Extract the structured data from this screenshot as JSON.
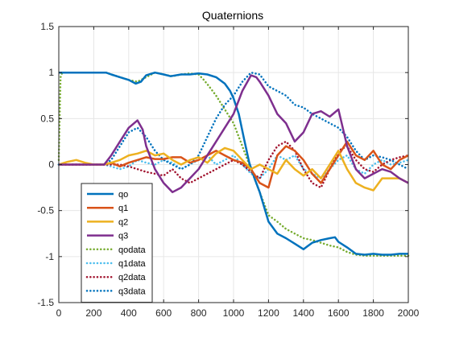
{
  "chart_data": {
    "type": "line",
    "title": "Quaternions",
    "xlabel": "",
    "ylabel": "",
    "xlim": [
      0,
      2000
    ],
    "ylim": [
      -1.5,
      1.5
    ],
    "xticks": [
      0,
      200,
      400,
      600,
      800,
      1000,
      1200,
      1400,
      1600,
      1800,
      2000
    ],
    "yticks": [
      -1.5,
      -1,
      -0.5,
      0,
      0.5,
      1,
      1.5
    ],
    "xtick_labels": [
      "0",
      "200",
      "400",
      "600",
      "800",
      "1000",
      "1200",
      "1400",
      "1600",
      "1800",
      "2000"
    ],
    "ytick_labels": [
      "-1.5",
      "-1",
      "-0.5",
      "0",
      "0.5",
      "1",
      "1.5"
    ],
    "grid": true,
    "legend_position": "bottom-left",
    "series": [
      {
        "name": "qo",
        "color": "#0072BD",
        "style": "solid",
        "x": [
          0,
          20,
          100,
          200,
          270,
          300,
          350,
          400,
          440,
          470,
          500,
          550,
          600,
          640,
          700,
          750,
          800,
          850,
          900,
          950,
          980,
          1000,
          1030,
          1060,
          1090,
          1120,
          1150,
          1200,
          1250,
          1300,
          1350,
          1400,
          1450,
          1500,
          1550,
          1580,
          1600,
          1650,
          1700,
          1750,
          1800,
          1850,
          1900,
          1950,
          2000
        ],
        "y": [
          1.0,
          1.0,
          1.0,
          1.0,
          1.0,
          0.98,
          0.95,
          0.92,
          0.88,
          0.9,
          0.97,
          1.0,
          0.98,
          0.96,
          0.98,
          0.98,
          0.99,
          0.98,
          0.95,
          0.88,
          0.8,
          0.72,
          0.55,
          0.28,
          0.02,
          -0.15,
          -0.3,
          -0.62,
          -0.75,
          -0.8,
          -0.86,
          -0.92,
          -0.85,
          -0.82,
          -0.8,
          -0.79,
          -0.84,
          -0.9,
          -0.97,
          -0.98,
          -0.97,
          -0.98,
          -0.98,
          -0.97,
          -0.97
        ]
      },
      {
        "name": "q1",
        "color": "#D95319",
        "style": "solid",
        "x": [
          0,
          100,
          200,
          260,
          300,
          350,
          400,
          450,
          500,
          550,
          600,
          650,
          700,
          750,
          800,
          850,
          900,
          950,
          1000,
          1050,
          1100,
          1150,
          1200,
          1250,
          1300,
          1350,
          1400,
          1450,
          1500,
          1550,
          1600,
          1650,
          1700,
          1750,
          1800,
          1850,
          1900,
          1950,
          2000
        ],
        "y": [
          0.0,
          0.0,
          0.0,
          0.0,
          0.02,
          -0.02,
          0.02,
          0.05,
          0.08,
          0.06,
          0.06,
          0.08,
          0.08,
          0.02,
          0.05,
          0.1,
          0.15,
          0.1,
          0.05,
          0.02,
          -0.05,
          -0.2,
          -0.25,
          0.1,
          0.2,
          0.15,
          0.05,
          -0.1,
          -0.2,
          -0.05,
          0.1,
          0.25,
          0.1,
          0.05,
          0.15,
          0.0,
          -0.05,
          0.05,
          0.1
        ]
      },
      {
        "name": "q2",
        "color": "#EDB120",
        "style": "solid",
        "x": [
          0,
          50,
          100,
          150,
          200,
          250,
          300,
          350,
          400,
          450,
          500,
          550,
          600,
          650,
          700,
          750,
          800,
          850,
          900,
          950,
          1000,
          1050,
          1100,
          1150,
          1200,
          1250,
          1300,
          1350,
          1400,
          1450,
          1500,
          1550,
          1600,
          1650,
          1700,
          1750,
          1800,
          1850,
          1900,
          1950,
          2000
        ],
        "y": [
          0.0,
          0.03,
          0.05,
          0.02,
          0.0,
          0.0,
          0.02,
          0.05,
          0.1,
          0.12,
          0.15,
          0.1,
          0.12,
          0.05,
          0.0,
          0.05,
          0.08,
          0.02,
          0.12,
          0.18,
          0.15,
          0.05,
          -0.05,
          0.0,
          -0.05,
          -0.1,
          0.05,
          -0.05,
          -0.12,
          -0.05,
          -0.15,
          0.0,
          0.15,
          -0.05,
          -0.2,
          -0.25,
          -0.28,
          -0.15,
          -0.15,
          -0.15,
          -0.2
        ]
      },
      {
        "name": "q3",
        "color": "#7E2F8E",
        "style": "solid",
        "x": [
          0,
          100,
          200,
          260,
          300,
          350,
          400,
          450,
          480,
          500,
          550,
          600,
          650,
          700,
          750,
          800,
          850,
          900,
          950,
          1000,
          1050,
          1100,
          1130,
          1150,
          1200,
          1250,
          1300,
          1350,
          1400,
          1450,
          1500,
          1550,
          1600,
          1650,
          1700,
          1750,
          1800,
          1850,
          1900,
          1950,
          2000
        ],
        "y": [
          0.0,
          0.0,
          0.0,
          0.0,
          0.1,
          0.25,
          0.4,
          0.48,
          0.38,
          0.2,
          -0.05,
          -0.2,
          -0.3,
          -0.25,
          -0.15,
          -0.05,
          0.1,
          0.25,
          0.4,
          0.55,
          0.8,
          0.97,
          0.95,
          0.9,
          0.75,
          0.55,
          0.45,
          0.25,
          0.35,
          0.55,
          0.58,
          0.52,
          0.6,
          0.2,
          -0.05,
          -0.15,
          -0.1,
          -0.05,
          -0.08,
          -0.15,
          -0.2
        ]
      },
      {
        "name": "qodata",
        "color": "#77AC30",
        "style": "dotted",
        "x": [
          0,
          10,
          20,
          100,
          200,
          270,
          300,
          350,
          400,
          450,
          500,
          550,
          600,
          650,
          700,
          750,
          800,
          830,
          860,
          900,
          950,
          1000,
          1050,
          1100,
          1150,
          1200,
          1250,
          1300,
          1350,
          1400,
          1450,
          1500,
          1550,
          1600,
          1650,
          1700,
          1750,
          1800,
          1850,
          1900,
          1950,
          2000
        ],
        "y": [
          0.05,
          0.95,
          1.0,
          1.0,
          1.0,
          1.0,
          0.98,
          0.95,
          0.92,
          0.9,
          0.95,
          1.0,
          0.98,
          0.96,
          0.98,
          0.99,
          0.98,
          0.92,
          0.85,
          0.75,
          0.6,
          0.45,
          0.2,
          -0.05,
          -0.3,
          -0.55,
          -0.62,
          -0.7,
          -0.75,
          -0.8,
          -0.82,
          -0.85,
          -0.88,
          -0.9,
          -0.95,
          -0.98,
          -0.99,
          -0.99,
          -0.99,
          -0.99,
          -0.99,
          -0.99
        ]
      },
      {
        "name": "q1data",
        "color": "#4DBEEE",
        "style": "dotted",
        "x": [
          0,
          100,
          200,
          260,
          300,
          350,
          400,
          450,
          500,
          550,
          600,
          650,
          700,
          750,
          800,
          850,
          900,
          950,
          1000,
          1050,
          1100,
          1150,
          1200,
          1250,
          1300,
          1350,
          1400,
          1450,
          1500,
          1550,
          1600,
          1650,
          1700,
          1750,
          1800,
          1850,
          1900,
          1950,
          2000
        ],
        "y": [
          0.0,
          0.0,
          0.0,
          0.0,
          -0.02,
          -0.05,
          -0.02,
          0.05,
          0.02,
          0.0,
          0.05,
          0.02,
          -0.05,
          0.0,
          0.05,
          0.1,
          0.0,
          0.05,
          0.1,
          0.0,
          -0.1,
          -0.15,
          -0.05,
          0.1,
          0.05,
          0.1,
          -0.05,
          -0.1,
          -0.15,
          -0.05,
          0.05,
          0.1,
          -0.05,
          -0.1,
          0.0,
          0.05,
          0.0,
          0.02,
          0.05
        ]
      },
      {
        "name": "q2data",
        "color": "#A2142F",
        "style": "dotted",
        "x": [
          0,
          100,
          200,
          260,
          300,
          350,
          400,
          450,
          500,
          550,
          600,
          650,
          700,
          750,
          800,
          850,
          900,
          950,
          1000,
          1050,
          1100,
          1150,
          1200,
          1250,
          1300,
          1350,
          1400,
          1450,
          1500,
          1550,
          1600,
          1650,
          1700,
          1750,
          1800,
          1850,
          1900,
          1950,
          2000
        ],
        "y": [
          0.0,
          0.0,
          0.0,
          0.0,
          0.0,
          0.0,
          -0.02,
          -0.05,
          -0.08,
          -0.1,
          -0.12,
          -0.05,
          -0.15,
          -0.2,
          -0.15,
          -0.1,
          -0.05,
          0.0,
          0.05,
          0.0,
          -0.08,
          -0.15,
          0.05,
          0.2,
          0.25,
          0.15,
          -0.05,
          -0.2,
          -0.25,
          -0.05,
          0.15,
          0.2,
          0.05,
          -0.05,
          -0.08,
          0.0,
          0.05,
          0.08,
          0.1
        ]
      },
      {
        "name": "q3data",
        "color": "#0072BD",
        "style": "dotted",
        "x": [
          0,
          100,
          200,
          260,
          300,
          350,
          400,
          450,
          500,
          550,
          600,
          650,
          700,
          750,
          800,
          850,
          900,
          950,
          1000,
          1050,
          1100,
          1150,
          1200,
          1250,
          1300,
          1350,
          1400,
          1450,
          1500,
          1550,
          1600,
          1650,
          1700,
          1750,
          1800,
          1850,
          1900,
          1950,
          2000
        ],
        "y": [
          0.0,
          0.0,
          0.0,
          0.0,
          0.05,
          0.2,
          0.35,
          0.4,
          0.3,
          0.15,
          0.05,
          0.0,
          -0.05,
          0.0,
          0.1,
          0.3,
          0.5,
          0.65,
          0.75,
          0.9,
          1.0,
          0.98,
          0.85,
          0.8,
          0.75,
          0.65,
          0.62,
          0.55,
          0.5,
          0.45,
          0.4,
          0.3,
          0.15,
          0.05,
          0.1,
          0.08,
          0.05,
          0.0,
          -0.05
        ]
      }
    ]
  }
}
